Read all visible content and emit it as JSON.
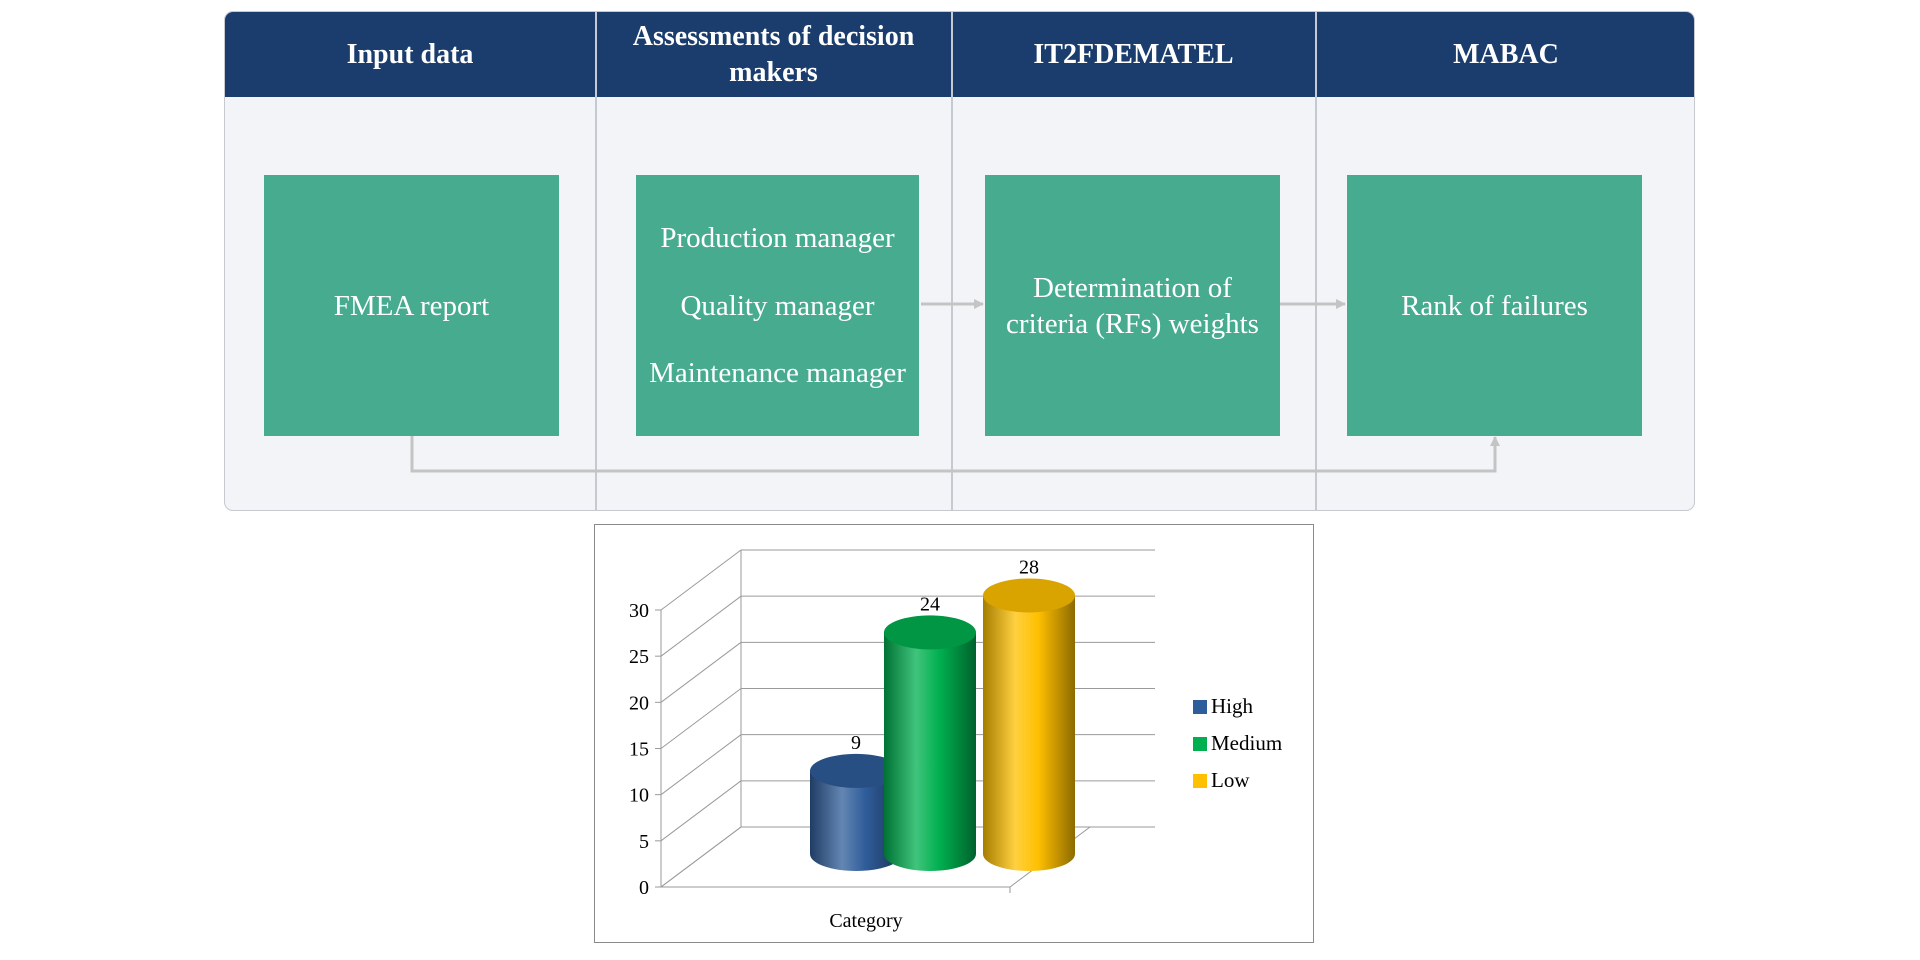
{
  "flow": {
    "headers": [
      "Input data",
      "Assessments of decision makers",
      "IT2FDEMATEL",
      "MABAC"
    ],
    "boxes": {
      "input": "FMEA report",
      "roles": [
        "Production manager",
        "Quality manager",
        "Maintenance manager"
      ],
      "weights": "Determination of criteria (RFs) weights",
      "rank": "Rank of failures"
    },
    "colors": {
      "header": "#1b3d6d",
      "box": "#47ab8f",
      "panel": "#f2f4f7",
      "arrow": "#c4c4c4"
    }
  },
  "chart_data": {
    "type": "bar",
    "style": "3d-cylinder",
    "categories": [
      "Category"
    ],
    "series": [
      {
        "name": "High",
        "values": [
          9
        ],
        "color": "#2f5d9a"
      },
      {
        "name": "Medium",
        "values": [
          24
        ],
        "color": "#00b050"
      },
      {
        "name": "Low",
        "values": [
          28
        ],
        "color": "#ffc000"
      }
    ],
    "xlabel": "Category",
    "ylim": [
      0,
      30
    ],
    "yticks": [
      0,
      5,
      10,
      15,
      20,
      25,
      30
    ],
    "grid": true,
    "data_labels": true,
    "legend": "right"
  }
}
